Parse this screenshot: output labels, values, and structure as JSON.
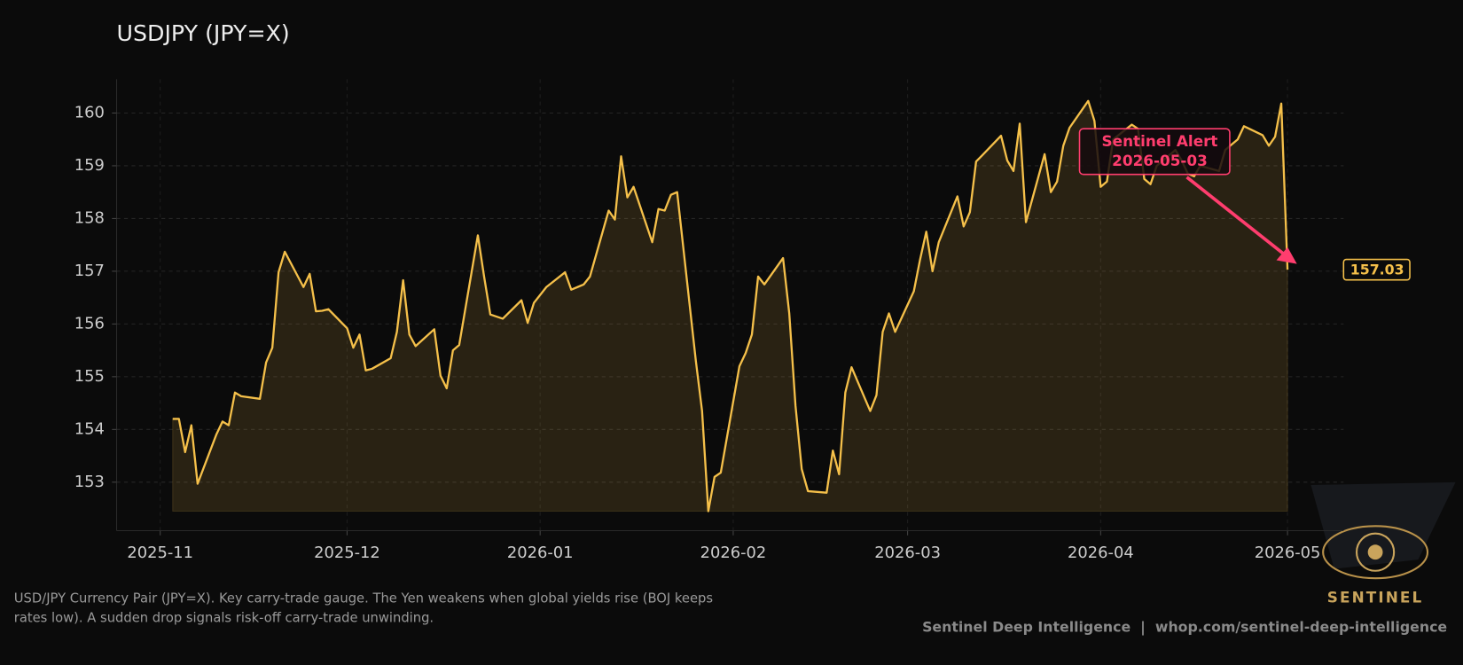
{
  "chart_data": {
    "type": "line",
    "title": "USDJPY (JPY=X)",
    "color": "#f5c04a",
    "x": [
      "2025-11-03",
      "2025-11-04",
      "2025-11-05",
      "2025-11-06",
      "2025-11-07",
      "2025-11-10",
      "2025-11-11",
      "2025-11-12",
      "2025-11-13",
      "2025-11-14",
      "2025-11-17",
      "2025-11-18",
      "2025-11-19",
      "2025-11-20",
      "2025-11-21",
      "2025-11-24",
      "2025-11-25",
      "2025-11-26",
      "2025-11-27",
      "2025-11-28",
      "2025-12-01",
      "2025-12-02",
      "2025-12-03",
      "2025-12-04",
      "2025-12-05",
      "2025-12-08",
      "2025-12-09",
      "2025-12-10",
      "2025-12-11",
      "2025-12-12",
      "2025-12-15",
      "2025-12-16",
      "2025-12-17",
      "2025-12-18",
      "2025-12-19",
      "2025-12-22",
      "2025-12-23",
      "2025-12-24",
      "2025-12-26",
      "2025-12-29",
      "2025-12-30",
      "2025-12-31",
      "2026-01-02",
      "2026-01-05",
      "2026-01-06",
      "2026-01-07",
      "2026-01-08",
      "2026-01-09",
      "2026-01-12",
      "2026-01-13",
      "2026-01-14",
      "2026-01-15",
      "2026-01-16",
      "2026-01-19",
      "2026-01-20",
      "2026-01-21",
      "2026-01-22",
      "2026-01-23",
      "2026-01-26",
      "2026-01-27",
      "2026-01-28",
      "2026-01-29",
      "2026-01-30",
      "2026-02-02",
      "2026-02-03",
      "2026-02-04",
      "2026-02-05",
      "2026-02-06",
      "2026-02-09",
      "2026-02-10",
      "2026-02-11",
      "2026-02-12",
      "2026-02-13",
      "2026-02-16",
      "2026-02-17",
      "2026-02-18",
      "2026-02-19",
      "2026-02-20",
      "2026-02-23",
      "2026-02-24",
      "2026-02-25",
      "2026-02-26",
      "2026-02-27",
      "2026-03-02",
      "2026-03-03",
      "2026-03-04",
      "2026-03-05",
      "2026-03-06",
      "2026-03-09",
      "2026-03-10",
      "2026-03-11",
      "2026-03-12",
      "2026-03-13",
      "2026-03-16",
      "2026-03-17",
      "2026-03-18",
      "2026-03-19",
      "2026-03-20",
      "2026-03-23",
      "2026-03-24",
      "2026-03-25",
      "2026-03-26",
      "2026-03-27",
      "2026-03-30",
      "2026-03-31",
      "2026-04-01",
      "2026-04-02",
      "2026-04-03",
      "2026-04-06",
      "2026-04-07",
      "2026-04-08",
      "2026-04-09",
      "2026-04-10",
      "2026-04-13",
      "2026-04-14",
      "2026-04-15",
      "2026-04-16",
      "2026-04-17",
      "2026-04-20",
      "2026-04-21",
      "2026-04-22",
      "2026-04-23",
      "2026-04-24",
      "2026-04-27",
      "2026-04-28",
      "2026-04-29",
      "2026-04-30",
      "2026-05-01"
    ],
    "values": [
      154.2,
      154.2,
      153.57,
      154.08,
      152.97,
      153.9,
      154.15,
      154.08,
      154.7,
      154.63,
      154.58,
      155.27,
      155.55,
      156.98,
      157.37,
      156.7,
      156.95,
      156.24,
      156.25,
      156.28,
      155.92,
      155.55,
      155.8,
      155.12,
      155.15,
      155.35,
      155.85,
      156.83,
      155.8,
      155.58,
      155.9,
      155.02,
      154.78,
      155.5,
      155.6,
      157.68,
      156.9,
      156.18,
      156.1,
      156.45,
      156.02,
      156.4,
      156.7,
      156.98,
      156.65,
      156.7,
      156.75,
      156.9,
      158.15,
      157.98,
      159.18,
      158.4,
      158.6,
      157.55,
      158.18,
      158.15,
      158.45,
      158.5,
      155.3,
      154.35,
      152.45,
      153.1,
      153.18,
      155.2,
      155.45,
      155.8,
      156.9,
      156.75,
      157.25,
      156.2,
      154.45,
      153.25,
      152.83,
      152.8,
      153.6,
      153.15,
      154.7,
      155.18,
      154.35,
      154.65,
      155.85,
      156.2,
      155.85,
      156.62,
      157.22,
      157.75,
      157.0,
      157.55,
      158.42,
      157.85,
      158.12,
      159.08,
      159.2,
      159.57,
      159.1,
      158.9,
      159.8,
      157.93,
      159.22,
      158.5,
      158.7,
      159.38,
      159.72,
      160.23,
      159.85,
      158.6,
      158.7,
      159.5,
      159.78,
      159.7,
      158.75,
      158.65,
      159.0,
      159.3,
      159.1,
      158.85,
      158.8,
      159.0,
      158.9,
      159.3,
      159.4,
      159.5,
      159.75,
      159.58,
      159.38,
      159.55,
      160.18,
      157.03
    ],
    "xlim": [
      "2025-10-25",
      "2026-05-10"
    ],
    "xticks": [
      "2025-11",
      "2025-12",
      "2026-01",
      "2026-02",
      "2026-03",
      "2026-04",
      "2026-05"
    ],
    "ylim": [
      152.08,
      160.64
    ],
    "yticks": [
      153,
      154,
      155,
      156,
      157,
      158,
      159,
      160
    ],
    "grid": true,
    "annotation": {
      "lines": [
        "Sentinel Alert",
        "2026-05-03"
      ],
      "color": "#ff3d6e"
    },
    "description": [
      "USD/JPY Currency Pair (JPY=X). Key carry-trade gauge. The Yen weakens when global yields rise (BOJ keeps",
      "rates low). A sudden drop signals risk-off carry-trade unwinding."
    ],
    "credit": "Sentinel Deep Intelligence  |  whop.com/sentinel-deep-intelligence",
    "logo": "SENTINEL"
  }
}
